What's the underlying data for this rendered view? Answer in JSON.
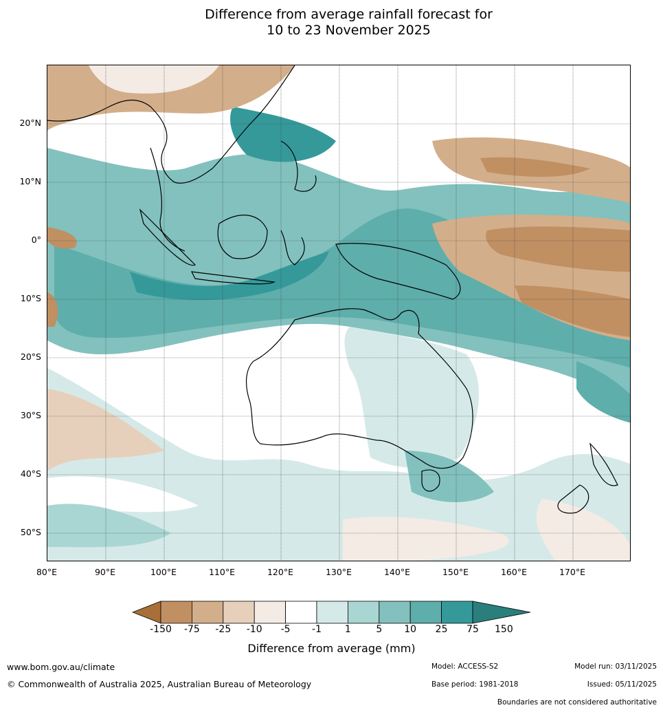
{
  "title": {
    "line1": "Difference from average rainfall forecast for",
    "line2": "10 to 23 November 2025"
  },
  "lat_labels": [
    "20°N",
    "10°N",
    "0°",
    "10°S",
    "20°S",
    "30°S",
    "40°S",
    "50°S"
  ],
  "lon_labels": [
    "80°E",
    "90°E",
    "100°E",
    "110°E",
    "120°E",
    "130°E",
    "140°E",
    "150°E",
    "160°E",
    "170°E"
  ],
  "colorbar": {
    "colors": [
      "#a86f3a",
      "#c08f62",
      "#d3ae8a",
      "#e6d0bc",
      "#f4ebe5",
      "#ffffff",
      "#d5eae8",
      "#a9d6d3",
      "#82c1be",
      "#5eaeab",
      "#35999a",
      "#2a7f7d"
    ],
    "tick_labels": [
      "-150",
      "-75",
      "-25",
      "-10",
      "-5",
      "-1",
      "1",
      "5",
      "10",
      "25",
      "75",
      "150"
    ],
    "title": "Difference from average (mm)"
  },
  "footer": {
    "url": "www.bom.gov.au/climate",
    "copyright": "© Commonwealth of Australia 2025, Australian Bureau of Meteorology",
    "model": "Model: ACCESS-S2",
    "base_period": "Base period: 1981-2018",
    "model_run": "Model run: 03/11/2025",
    "issued": "Issued: 05/11/2025",
    "disclaimer": "Boundaries are not considered authoritative"
  }
}
